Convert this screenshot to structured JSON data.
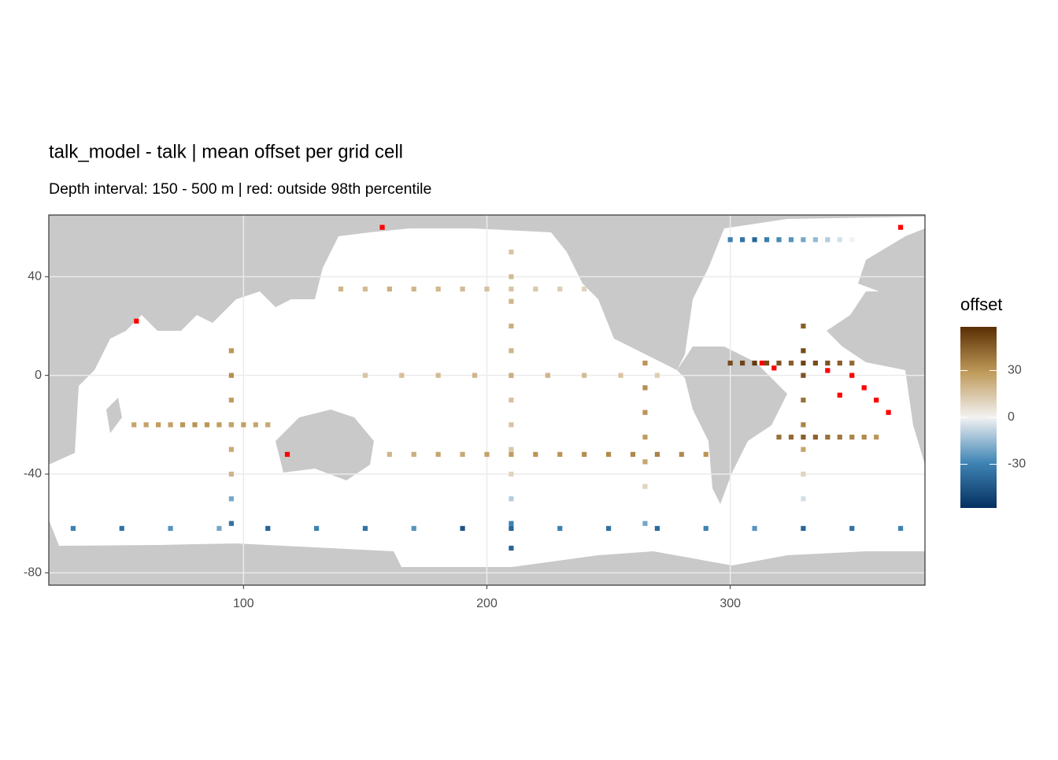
{
  "chart_data": {
    "type": "raster",
    "title": "talk_model - talk  | mean offset per grid cell",
    "subtitle": "Depth interval: 150 - 500 m | red: outside 98th percentile",
    "xlim": [
      20,
      380
    ],
    "ylim": [
      -85,
      65
    ],
    "xticks": [
      100,
      200,
      300
    ],
    "yticks": [
      -80,
      -40,
      0,
      40
    ],
    "grid": true,
    "legend": {
      "title": "offset",
      "position": "right",
      "limits": [
        -58,
        58
      ],
      "ticks": [
        -30,
        0,
        30
      ],
      "colorscale": [
        [
          -58,
          "#053061"
        ],
        [
          -29,
          "#3f85b5"
        ],
        [
          0,
          "#f2f2f2"
        ],
        [
          29,
          "#bf9a5a"
        ],
        [
          58,
          "#5a2e03"
        ]
      ]
    },
    "series": [
      {
        "x": [
          160,
          170,
          180,
          190,
          200,
          210,
          220,
          230,
          240,
          250,
          260,
          270,
          280,
          290
        ],
        "y": [
          -32,
          -32,
          -32,
          -32,
          -32,
          -32,
          -32,
          -32,
          -32,
          -32,
          -32,
          -32,
          -32,
          -32
        ],
        "values": [
          20,
          22,
          25,
          24,
          26,
          28,
          30,
          30,
          32,
          33,
          34,
          35,
          33,
          30
        ]
      },
      {
        "x": [
          55,
          60,
          65,
          70,
          75,
          80,
          85,
          90,
          95,
          100,
          105,
          110
        ],
        "y": [
          -20,
          -20,
          -20,
          -20,
          -20,
          -20,
          -20,
          -20,
          -20,
          -20,
          -20,
          -20
        ],
        "values": [
          25,
          26,
          28,
          27,
          30,
          31,
          30,
          28,
          26,
          27,
          25,
          24
        ]
      },
      {
        "x": [
          210,
          210,
          210,
          210,
          210,
          210,
          210,
          210,
          210,
          210,
          210,
          210,
          210
        ],
        "y": [
          50,
          40,
          30,
          20,
          10,
          0,
          -10,
          -20,
          -30,
          -40,
          -50,
          -60,
          -70
        ],
        "values": [
          15,
          18,
          20,
          22,
          20,
          18,
          16,
          15,
          14,
          10,
          -10,
          -30,
          -40
        ]
      },
      {
        "x": [
          320,
          325,
          330,
          335,
          340,
          345,
          350,
          355,
          360
        ],
        "y": [
          -25,
          -25,
          -25,
          -25,
          -25,
          -25,
          -25,
          -25,
          -25
        ],
        "values": [
          40,
          42,
          45,
          44,
          40,
          38,
          35,
          33,
          30
        ]
      },
      {
        "x": [
          330,
          330,
          330,
          330,
          330,
          330,
          330,
          330
        ],
        "y": [
          20,
          10,
          0,
          -10,
          -20,
          -30,
          -40,
          -50
        ],
        "values": [
          45,
          50,
          48,
          40,
          35,
          25,
          10,
          -5
        ]
      },
      {
        "x": [
          30,
          50,
          70,
          90,
          110,
          130,
          150,
          170,
          190,
          210,
          230,
          250,
          270,
          290,
          310,
          330,
          350,
          370
        ],
        "y": [
          -62,
          -62,
          -62,
          -62,
          -62,
          -62,
          -62,
          -62,
          -62,
          -62,
          -62,
          -62,
          -62,
          -62,
          -62,
          -62,
          -62,
          -62
        ],
        "values": [
          -30,
          -35,
          -25,
          -20,
          -40,
          -30,
          -35,
          -25,
          -45,
          -40,
          -30,
          -35,
          -38,
          -30,
          -25,
          -40,
          -35,
          -30
        ]
      },
      {
        "x": [
          140,
          150,
          160,
          170,
          180,
          190,
          200,
          210,
          220,
          230,
          240
        ],
        "y": [
          35,
          35,
          35,
          35,
          35,
          35,
          35,
          35,
          35,
          35,
          35
        ],
        "values": [
          20,
          18,
          22,
          20,
          19,
          18,
          16,
          15,
          14,
          12,
          10
        ]
      },
      {
        "x": [
          95,
          95,
          95,
          95,
          95,
          95,
          95,
          95
        ],
        "y": [
          10,
          0,
          -10,
          -20,
          -30,
          -40,
          -50,
          -60
        ],
        "values": [
          30,
          32,
          28,
          26,
          24,
          20,
          -20,
          -35
        ]
      },
      {
        "x": [
          300,
          305,
          310,
          315,
          320,
          325,
          330,
          335,
          340,
          345,
          350
        ],
        "y": [
          55,
          55,
          55,
          55,
          55,
          55,
          55,
          55,
          55,
          55,
          55
        ],
        "values": [
          -30,
          -35,
          -40,
          -32,
          -28,
          -25,
          -20,
          -15,
          -10,
          -5,
          0
        ]
      },
      {
        "x": [
          300,
          305,
          310,
          315,
          320,
          325,
          330,
          335,
          340,
          345,
          350
        ],
        "y": [
          5,
          5,
          5,
          5,
          5,
          5,
          5,
          5,
          5,
          5,
          5
        ],
        "values": [
          50,
          52,
          55,
          50,
          48,
          45,
          52,
          50,
          48,
          45,
          42
        ]
      },
      {
        "x": [
          150,
          165,
          180,
          195,
          210,
          225,
          240,
          255,
          270
        ],
        "y": [
          0,
          0,
          0,
          0,
          0,
          0,
          0,
          0,
          0
        ],
        "values": [
          15,
          17,
          18,
          20,
          22,
          20,
          18,
          15,
          12
        ]
      },
      {
        "x": [
          265,
          265,
          265,
          265,
          265,
          265,
          265
        ],
        "y": [
          5,
          -5,
          -15,
          -25,
          -35,
          -45,
          -60
        ],
        "values": [
          30,
          32,
          30,
          28,
          25,
          10,
          -20
        ]
      }
    ],
    "outliers": {
      "color": "#ff0000",
      "x": [
        313,
        318,
        340,
        350,
        355,
        360,
        365,
        157,
        118,
        56,
        345,
        370
      ],
      "y": [
        5,
        3,
        2,
        0,
        -5,
        -10,
        -15,
        60,
        -32,
        22,
        -8,
        60
      ]
    }
  }
}
